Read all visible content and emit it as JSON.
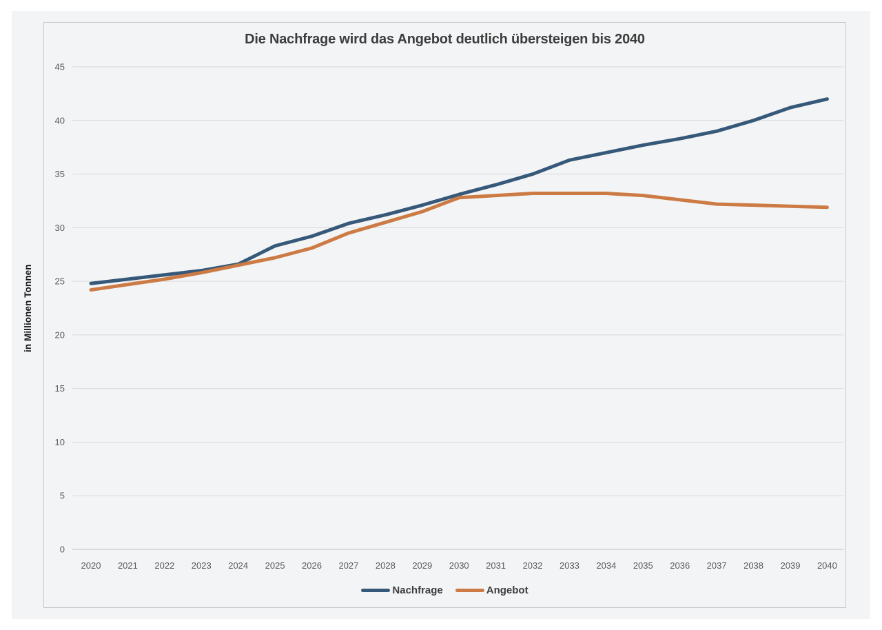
{
  "page": {
    "background": "#ffffff",
    "canvas_background": "#f3f4f5",
    "frame_border_color": "#c8c8ca"
  },
  "chart_data": {
    "type": "line",
    "title": "Die Nachfrage wird das Angebot deutlich übersteigen bis 2040",
    "ylabel": "in Millionen Tonnen",
    "xlabel": "",
    "categories": [
      2020,
      2021,
      2022,
      2023,
      2024,
      2025,
      2026,
      2027,
      2028,
      2029,
      2030,
      2031,
      2032,
      2033,
      2034,
      2035,
      2036,
      2037,
      2038,
      2039,
      2040
    ],
    "series": [
      {
        "name": "Nachfrage",
        "color": "#36597A",
        "values": [
          24.8,
          25.2,
          25.6,
          26.0,
          26.6,
          28.3,
          29.2,
          30.4,
          31.2,
          32.1,
          33.1,
          34.0,
          35.0,
          36.3,
          37.0,
          37.7,
          38.3,
          39.0,
          40.0,
          41.2,
          42.0
        ]
      },
      {
        "name": "Angebot",
        "color": "#CD7B45",
        "values": [
          24.2,
          24.7,
          25.2,
          25.8,
          26.5,
          27.2,
          28.1,
          29.5,
          30.5,
          31.5,
          32.8,
          33.0,
          33.2,
          33.2,
          33.2,
          33.0,
          32.6,
          32.2,
          32.1,
          32.0,
          31.9
        ]
      }
    ],
    "ylim": [
      0,
      45
    ],
    "ytick_step": 5,
    "grid": true,
    "gridline_color": "#d9d9db",
    "baseline_color": "#c2c2c4",
    "tick_text_color": "#595959",
    "legend_position": "bottom"
  }
}
